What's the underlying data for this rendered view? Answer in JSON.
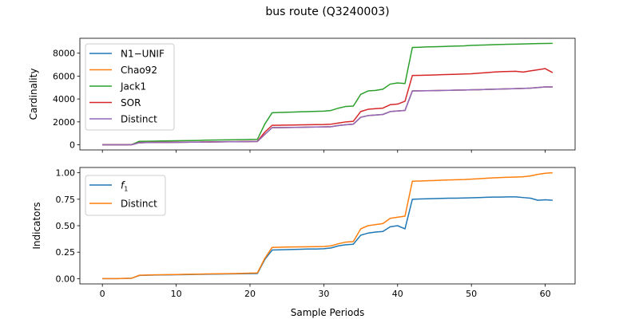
{
  "figure": {
    "title": "bus route (Q3240003)"
  },
  "colors": {
    "blue": "#1f77b4",
    "orange": "#ff7f0e",
    "green": "#2ca02c",
    "red": "#d62728",
    "purple": "#9467bd"
  },
  "chart_data": [
    {
      "type": "line",
      "ylabel": "Cardinality",
      "xlabel": "",
      "xlim": [
        -3.05,
        64.05
      ],
      "ylim": [
        -450,
        9300
      ],
      "xticks": [
        0,
        10,
        20,
        30,
        40,
        50,
        60
      ],
      "yticks": [
        0,
        2000,
        4000,
        6000,
        8000
      ],
      "ytick_labels": [
        "0",
        "2000",
        "4000",
        "6000",
        "8000"
      ],
      "legend": "upper-left",
      "grid": false,
      "series": [
        {
          "name": "N1−UNIF",
          "color": "#1f77b4",
          "x": [
            0,
            1,
            2,
            3,
            4,
            5,
            6,
            7,
            8,
            9,
            10,
            11,
            12,
            13,
            14,
            15,
            16,
            17,
            18,
            19,
            20,
            21,
            22,
            23,
            24,
            25,
            26,
            27,
            28,
            29,
            30,
            31,
            32,
            33,
            34,
            35,
            36,
            37,
            38,
            39,
            40,
            41,
            42,
            43,
            44,
            45,
            46,
            47,
            48,
            49,
            50,
            51,
            52,
            53,
            54,
            55,
            56,
            57,
            58,
            59,
            60,
            61
          ],
          "y": [
            0,
            0,
            0,
            0,
            10,
            180,
            190,
            200,
            205,
            210,
            215,
            220,
            225,
            230,
            240,
            250,
            255,
            260,
            265,
            270,
            280,
            290,
            900,
            1500,
            1500,
            1510,
            1520,
            1530,
            1540,
            1550,
            1560,
            1580,
            1680,
            1750,
            1800,
            2400,
            2550,
            2600,
            2650,
            2900,
            2950,
            3000,
            4700,
            4710,
            4720,
            4730,
            4750,
            4760,
            4770,
            4780,
            4800,
            4810,
            4830,
            4850,
            4870,
            4890,
            4900,
            4920,
            4950,
            5000,
            5050,
            5050
          ]
        },
        {
          "name": "Chao92",
          "color": "#ff7f0e",
          "x": [
            0,
            1,
            2,
            3,
            4,
            5,
            6,
            7,
            8,
            9,
            10,
            11,
            12,
            13,
            14,
            15,
            16,
            17,
            18,
            19,
            20,
            21,
            22,
            23,
            24,
            25,
            26,
            27,
            28,
            29,
            30,
            31,
            32,
            33,
            34,
            35,
            36,
            37,
            38,
            39,
            40,
            41,
            42,
            43,
            44,
            45,
            46,
            47,
            48,
            49,
            50,
            51,
            52,
            53,
            54,
            55,
            56,
            57,
            58,
            59,
            60,
            61
          ],
          "y": [
            0,
            0,
            0,
            0,
            10,
            180,
            190,
            200,
            205,
            210,
            215,
            220,
            225,
            230,
            240,
            250,
            255,
            260,
            265,
            270,
            280,
            290,
            900,
            1500,
            1500,
            1510,
            1520,
            1530,
            1540,
            1550,
            1560,
            1580,
            1680,
            1750,
            1800,
            2400,
            2550,
            2600,
            2650,
            2900,
            2950,
            3000,
            4700,
            4710,
            4720,
            4730,
            4750,
            4760,
            4770,
            4780,
            4800,
            4810,
            4830,
            4850,
            4870,
            4890,
            4900,
            4920,
            4950,
            5000,
            5050,
            5050
          ]
        },
        {
          "name": "Jack1",
          "color": "#2ca02c",
          "x": [
            0,
            1,
            2,
            3,
            4,
            5,
            6,
            7,
            8,
            9,
            10,
            11,
            12,
            13,
            14,
            15,
            16,
            17,
            18,
            19,
            20,
            21,
            22,
            23,
            24,
            25,
            26,
            27,
            28,
            29,
            30,
            31,
            32,
            33,
            34,
            35,
            36,
            37,
            38,
            39,
            40,
            41,
            42,
            43,
            44,
            45,
            46,
            47,
            48,
            49,
            50,
            51,
            52,
            53,
            54,
            55,
            56,
            57,
            58,
            59,
            60,
            61
          ],
          "y": [
            0,
            0,
            0,
            0,
            20,
            300,
            310,
            320,
            330,
            340,
            350,
            360,
            370,
            380,
            400,
            410,
            420,
            430,
            440,
            450,
            460,
            470,
            1800,
            2800,
            2820,
            2840,
            2860,
            2880,
            2900,
            2920,
            2940,
            3000,
            3200,
            3350,
            3380,
            4400,
            4700,
            4750,
            4850,
            5300,
            5400,
            5350,
            8500,
            8520,
            8550,
            8560,
            8580,
            8600,
            8620,
            8640,
            8680,
            8700,
            8720,
            8740,
            8760,
            8780,
            8790,
            8800,
            8820,
            8840,
            8850,
            8860
          ]
        },
        {
          "name": "SOR",
          "color": "#d62728",
          "x": [
            0,
            1,
            2,
            3,
            4,
            5,
            6,
            7,
            8,
            9,
            10,
            11,
            12,
            13,
            14,
            15,
            16,
            17,
            18,
            19,
            20,
            21,
            22,
            23,
            24,
            25,
            26,
            27,
            28,
            29,
            30,
            31,
            32,
            33,
            34,
            35,
            36,
            37,
            38,
            39,
            40,
            41,
            42,
            43,
            44,
            45,
            46,
            47,
            48,
            49,
            50,
            51,
            52,
            53,
            54,
            55,
            56,
            57,
            58,
            59,
            60,
            61
          ],
          "y": [
            0,
            0,
            0,
            0,
            10,
            190,
            200,
            210,
            215,
            220,
            225,
            230,
            235,
            240,
            250,
            260,
            265,
            270,
            275,
            280,
            290,
            300,
            1100,
            1700,
            1710,
            1720,
            1730,
            1740,
            1750,
            1760,
            1770,
            1800,
            1900,
            2000,
            2050,
            2900,
            3100,
            3150,
            3200,
            3500,
            3550,
            3800,
            6050,
            6060,
            6080,
            6100,
            6120,
            6140,
            6160,
            6180,
            6200,
            6250,
            6300,
            6350,
            6380,
            6400,
            6420,
            6350,
            6450,
            6550,
            6650,
            6300
          ]
        },
        {
          "name": "Distinct",
          "color": "#9467bd",
          "x": [
            0,
            1,
            2,
            3,
            4,
            5,
            6,
            7,
            8,
            9,
            10,
            11,
            12,
            13,
            14,
            15,
            16,
            17,
            18,
            19,
            20,
            21,
            22,
            23,
            24,
            25,
            26,
            27,
            28,
            29,
            30,
            31,
            32,
            33,
            34,
            35,
            36,
            37,
            38,
            39,
            40,
            41,
            42,
            43,
            44,
            45,
            46,
            47,
            48,
            49,
            50,
            51,
            52,
            53,
            54,
            55,
            56,
            57,
            58,
            59,
            60,
            61
          ],
          "y": [
            0,
            0,
            0,
            0,
            10,
            180,
            190,
            200,
            205,
            210,
            215,
            220,
            225,
            230,
            240,
            250,
            255,
            260,
            265,
            270,
            280,
            290,
            900,
            1500,
            1500,
            1510,
            1520,
            1530,
            1540,
            1550,
            1560,
            1580,
            1680,
            1750,
            1800,
            2400,
            2550,
            2600,
            2650,
            2900,
            2950,
            3000,
            4700,
            4710,
            4720,
            4730,
            4750,
            4760,
            4770,
            4780,
            4800,
            4810,
            4830,
            4850,
            4870,
            4890,
            4900,
            4920,
            4950,
            5000,
            5050,
            5050
          ]
        }
      ]
    },
    {
      "type": "line",
      "ylabel": "Indicators",
      "xlabel": "Sample Periods",
      "xlim": [
        -3.05,
        64.05
      ],
      "ylim": [
        -0.05,
        1.05
      ],
      "xticks": [
        0,
        10,
        20,
        30,
        40,
        50,
        60
      ],
      "xtick_labels": [
        "0",
        "10",
        "20",
        "30",
        "40",
        "50",
        "60"
      ],
      "yticks": [
        0,
        0.25,
        0.5,
        0.75,
        1.0
      ],
      "ytick_labels": [
        "0.00",
        "0.25",
        "0.50",
        "0.75",
        "1.00"
      ],
      "legend": "upper-left",
      "grid": false,
      "series": [
        {
          "name": "f1",
          "color": "#1f77b4",
          "x": [
            0,
            1,
            2,
            3,
            4,
            5,
            6,
            7,
            8,
            9,
            10,
            11,
            12,
            13,
            14,
            15,
            16,
            17,
            18,
            19,
            20,
            21,
            22,
            23,
            24,
            25,
            26,
            27,
            28,
            29,
            30,
            31,
            32,
            33,
            34,
            35,
            36,
            37,
            38,
            39,
            40,
            41,
            42,
            43,
            44,
            45,
            46,
            47,
            48,
            49,
            50,
            51,
            52,
            53,
            54,
            55,
            56,
            57,
            58,
            59,
            60,
            61
          ],
          "y": [
            0,
            0,
            0,
            0.002,
            0.004,
            0.03,
            0.032,
            0.034,
            0.035,
            0.036,
            0.037,
            0.038,
            0.039,
            0.04,
            0.041,
            0.042,
            0.043,
            0.044,
            0.045,
            0.046,
            0.047,
            0.048,
            0.18,
            0.27,
            0.272,
            0.274,
            0.276,
            0.278,
            0.28,
            0.28,
            0.282,
            0.29,
            0.31,
            0.32,
            0.325,
            0.41,
            0.43,
            0.44,
            0.445,
            0.49,
            0.5,
            0.47,
            0.75,
            0.752,
            0.754,
            0.756,
            0.758,
            0.76,
            0.76,
            0.762,
            0.764,
            0.766,
            0.768,
            0.77,
            0.77,
            0.772,
            0.772,
            0.766,
            0.76,
            0.74,
            0.745,
            0.74
          ]
        },
        {
          "name": "Distinct",
          "color": "#ff7f0e",
          "x": [
            0,
            1,
            2,
            3,
            4,
            5,
            6,
            7,
            8,
            9,
            10,
            11,
            12,
            13,
            14,
            15,
            16,
            17,
            18,
            19,
            20,
            21,
            22,
            23,
            24,
            25,
            26,
            27,
            28,
            29,
            30,
            31,
            32,
            33,
            34,
            35,
            36,
            37,
            38,
            39,
            40,
            41,
            42,
            43,
            44,
            45,
            46,
            47,
            48,
            49,
            50,
            51,
            52,
            53,
            54,
            55,
            56,
            57,
            58,
            59,
            60,
            61
          ],
          "y": [
            0,
            0,
            0,
            0.002,
            0.004,
            0.032,
            0.034,
            0.036,
            0.037,
            0.038,
            0.039,
            0.04,
            0.041,
            0.042,
            0.044,
            0.045,
            0.046,
            0.047,
            0.048,
            0.05,
            0.052,
            0.054,
            0.19,
            0.295,
            0.297,
            0.298,
            0.299,
            0.3,
            0.301,
            0.302,
            0.303,
            0.31,
            0.33,
            0.345,
            0.35,
            0.47,
            0.5,
            0.51,
            0.52,
            0.57,
            0.58,
            0.59,
            0.92,
            0.922,
            0.925,
            0.927,
            0.93,
            0.932,
            0.934,
            0.936,
            0.94,
            0.944,
            0.948,
            0.952,
            0.955,
            0.958,
            0.96,
            0.962,
            0.97,
            0.985,
            0.995,
            1.0
          ]
        }
      ]
    }
  ]
}
